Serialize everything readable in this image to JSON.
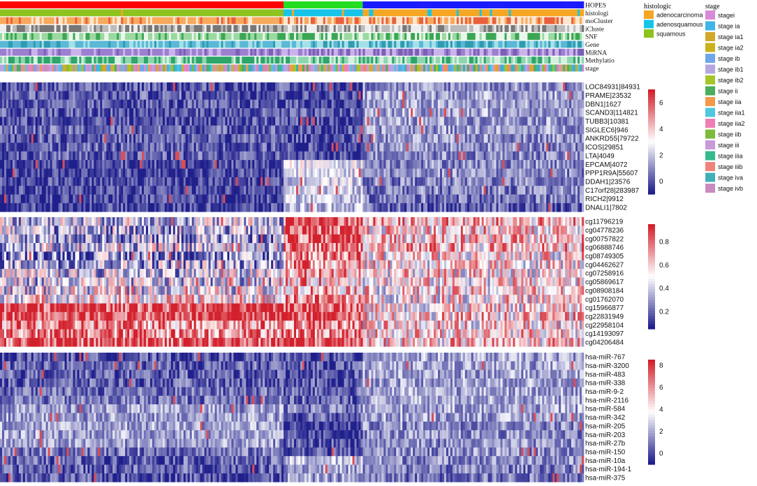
{
  "chart_data": {
    "type": "heatmap",
    "title": "",
    "annotation_tracks": [
      "HOPES",
      "histologi",
      "moCluster",
      "iCluste",
      "SNF",
      "Gene",
      "MiRNA",
      "Methylatio",
      "stage"
    ],
    "sample_groups": [
      {
        "label": "HOPES group 1",
        "color": "#ff0000",
        "fraction": 0.486
      },
      {
        "label": "HOPES group 2",
        "color": "#22dd22",
        "fraction": 0.135
      },
      {
        "label": "HOPES group 3",
        "color": "#1a1aff",
        "fraction": 0.379
      }
    ],
    "panels": [
      {
        "name": "gene-expression",
        "rows": [
          "LOC84931|84931",
          "PRAME|23532",
          "DBN1|1627",
          "SCAND3|114821",
          "TUBB3|10381",
          "SIGLEC6|946",
          "ANKRD55|79722",
          "ICOS|29851",
          "LTA|4049",
          "EPCAM|4072",
          "PPP1R9A|55607",
          "DDAH1|23576",
          "C17orf28|283987",
          "RICH2|9912",
          "DNALI1|7802"
        ],
        "colorbar": {
          "min": -1,
          "max": 7,
          "ticks": [
            0,
            2,
            4,
            6
          ]
        }
      },
      {
        "name": "methylation",
        "rows": [
          "cg11796219",
          "cg04778236",
          "cg00757822",
          "cg06888746",
          "cg08749305",
          "cg04462627",
          "cg07258916",
          "cg05869617",
          "cg08908184",
          "cg01762070",
          "cg15966877",
          "cg22831949",
          "cg22958104",
          "cg14193097",
          "cg04206484"
        ],
        "colorbar": {
          "min": 0.05,
          "max": 0.95,
          "ticks": [
            0.2,
            0.4,
            0.6,
            0.8
          ]
        }
      },
      {
        "name": "mirna",
        "rows": [
          "hsa-miR-767",
          "hsa-miR-3200",
          "hsa-miR-483",
          "hsa-miR-338",
          "hsa-miR-9-2",
          "hsa-miR-2116",
          "hsa-miR-584",
          "hsa-miR-342",
          "hsa-miR-205",
          "hsa-miR-203",
          "hsa-miR-27b",
          "hsa-miR-150",
          "hsa-miR-10a",
          "hsa-miR-194-1",
          "hsa-miR-375"
        ],
        "colorbar": {
          "min": -1,
          "max": 8.5,
          "ticks": [
            0,
            2,
            4,
            6,
            8
          ]
        }
      }
    ],
    "legends": {
      "histologic": {
        "title": "histologic",
        "entries": [
          {
            "label": "adenocarcinoma",
            "color": "#f5a623"
          },
          {
            "label": "adenosquamous",
            "color": "#17c3e8"
          },
          {
            "label": "squamous",
            "color": "#8dc21f"
          }
        ]
      },
      "stage": {
        "title": "stage",
        "entries": [
          {
            "label": "stagei",
            "color": "#d98ad6"
          },
          {
            "label": "stage ia",
            "color": "#3fb4e6"
          },
          {
            "label": "stage ia1",
            "color": "#d1a82a"
          },
          {
            "label": "stage ia2",
            "color": "#c9b21c"
          },
          {
            "label": "stage ib",
            "color": "#6fa6e8"
          },
          {
            "label": "stage ib1",
            "color": "#b6a6e0"
          },
          {
            "label": "stage ib2",
            "color": "#a6c62a"
          },
          {
            "label": "stage ii",
            "color": "#4aae5a"
          },
          {
            "label": "stage iia",
            "color": "#f2994a"
          },
          {
            "label": "stage iia1",
            "color": "#4ec7e0"
          },
          {
            "label": "stage iia2",
            "color": "#ee7fb4"
          },
          {
            "label": "stage iib",
            "color": "#7dbb3a"
          },
          {
            "label": "stage iii",
            "color": "#c79ad9"
          },
          {
            "label": "stage iiia",
            "color": "#35b98e"
          },
          {
            "label": "stage iiib",
            "color": "#f0837a"
          },
          {
            "label": "stage iva",
            "color": "#3fb0b8"
          },
          {
            "label": "stage ivb",
            "color": "#c98bc0"
          }
        ]
      }
    },
    "colors": {
      "low": "#1f1f8c",
      "mid": "#ffffff",
      "high": "#d2202c"
    }
  }
}
